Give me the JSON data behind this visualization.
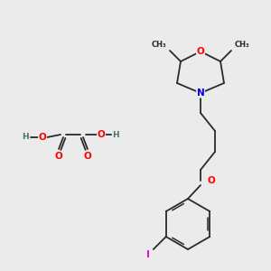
{
  "bg_color": "#ebebeb",
  "bond_color": "#2a2a2a",
  "atom_colors": {
    "O": "#ff0000",
    "N": "#0000ee",
    "I": "#dd00dd",
    "H": "#4a7070",
    "C": "#2a2a2a"
  },
  "font_size_atom": 7.5,
  "font_size_small": 6.5,
  "font_size_methyl": 6.0
}
